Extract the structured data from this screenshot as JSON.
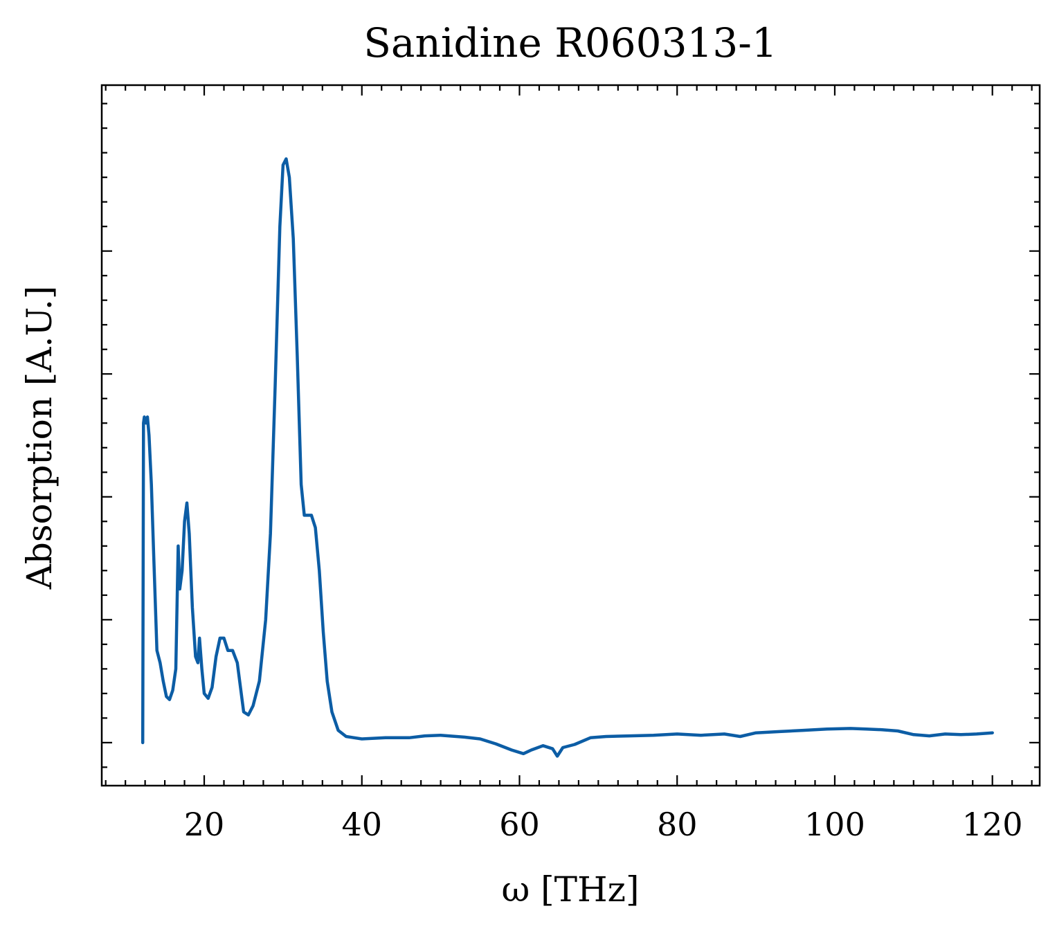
{
  "chart_data": {
    "type": "line",
    "title": "Sanidine R060313-1",
    "xlabel": "ω [THz]",
    "ylabel": "Absorption [A.U.]",
    "xlim": [
      7,
      126
    ],
    "ylim": [
      -0.07,
      1.07
    ],
    "x_major_ticks": [
      20,
      40,
      60,
      80,
      100,
      120
    ],
    "x_minor_step": 2.5,
    "y_major_ticks": [
      0.0,
      0.2,
      0.4,
      0.6,
      0.8
    ],
    "y_minor_step": 0.04,
    "y_tick_labels_visible": false,
    "ticks_direction": "in",
    "ticks_on_all_sides": true,
    "grid": false,
    "legend": "none",
    "colors": {
      "series": "#0C5DA5",
      "axes": "#000000"
    },
    "series": [
      {
        "color": "#0C5DA5",
        "points": [
          [
            12.2,
            0.0
          ],
          [
            12.3,
            0.52
          ],
          [
            12.4,
            0.53
          ],
          [
            12.6,
            0.52
          ],
          [
            12.8,
            0.53
          ],
          [
            13.0,
            0.5
          ],
          [
            13.3,
            0.42
          ],
          [
            13.6,
            0.3
          ],
          [
            14.0,
            0.15
          ],
          [
            14.4,
            0.13
          ],
          [
            14.8,
            0.1
          ],
          [
            15.2,
            0.075
          ],
          [
            15.6,
            0.07
          ],
          [
            16.0,
            0.085
          ],
          [
            16.4,
            0.12
          ],
          [
            16.7,
            0.32
          ],
          [
            16.9,
            0.25
          ],
          [
            17.2,
            0.28
          ],
          [
            17.5,
            0.36
          ],
          [
            17.8,
            0.39
          ],
          [
            18.1,
            0.34
          ],
          [
            18.5,
            0.22
          ],
          [
            18.9,
            0.14
          ],
          [
            19.2,
            0.13
          ],
          [
            19.4,
            0.17
          ],
          [
            19.7,
            0.12
          ],
          [
            20.0,
            0.08
          ],
          [
            20.5,
            0.072
          ],
          [
            21.0,
            0.09
          ],
          [
            21.5,
            0.14
          ],
          [
            22.0,
            0.17
          ],
          [
            22.5,
            0.17
          ],
          [
            23.0,
            0.15
          ],
          [
            23.6,
            0.15
          ],
          [
            24.2,
            0.13
          ],
          [
            24.6,
            0.09
          ],
          [
            25.0,
            0.05
          ],
          [
            25.6,
            0.045
          ],
          [
            26.2,
            0.06
          ],
          [
            27.0,
            0.1
          ],
          [
            27.8,
            0.2
          ],
          [
            28.4,
            0.34
          ],
          [
            29.0,
            0.58
          ],
          [
            29.6,
            0.84
          ],
          [
            30.0,
            0.94
          ],
          [
            30.4,
            0.95
          ],
          [
            30.8,
            0.92
          ],
          [
            31.3,
            0.82
          ],
          [
            31.8,
            0.63
          ],
          [
            32.3,
            0.42
          ],
          [
            32.7,
            0.37
          ],
          [
            33.2,
            0.37
          ],
          [
            33.6,
            0.37
          ],
          [
            34.1,
            0.35
          ],
          [
            34.6,
            0.28
          ],
          [
            35.1,
            0.18
          ],
          [
            35.6,
            0.1
          ],
          [
            36.2,
            0.05
          ],
          [
            37.0,
            0.02
          ],
          [
            38.0,
            0.01
          ],
          [
            40.0,
            0.006
          ],
          [
            43.0,
            0.008
          ],
          [
            46.0,
            0.008
          ],
          [
            48.0,
            0.011
          ],
          [
            50.0,
            0.012
          ],
          [
            53.0,
            0.009
          ],
          [
            55.0,
            0.006
          ],
          [
            57.0,
            -0.002
          ],
          [
            59.0,
            -0.012
          ],
          [
            60.5,
            -0.018
          ],
          [
            61.5,
            -0.012
          ],
          [
            63.0,
            -0.005
          ],
          [
            64.2,
            -0.01
          ],
          [
            64.8,
            -0.022
          ],
          [
            65.5,
            -0.008
          ],
          [
            67.0,
            -0.003
          ],
          [
            69.0,
            0.008
          ],
          [
            71.0,
            0.01
          ],
          [
            74.0,
            0.011
          ],
          [
            77.0,
            0.012
          ],
          [
            80.0,
            0.014
          ],
          [
            83.0,
            0.012
          ],
          [
            86.0,
            0.014
          ],
          [
            88.0,
            0.01
          ],
          [
            90.0,
            0.016
          ],
          [
            93.0,
            0.018
          ],
          [
            96.0,
            0.02
          ],
          [
            99.0,
            0.022
          ],
          [
            102.0,
            0.023
          ],
          [
            104.0,
            0.022
          ],
          [
            106.0,
            0.021
          ],
          [
            108.0,
            0.019
          ],
          [
            110.0,
            0.013
          ],
          [
            112.0,
            0.011
          ],
          [
            114.0,
            0.014
          ],
          [
            116.0,
            0.013
          ],
          [
            118.0,
            0.014
          ],
          [
            120.0,
            0.016
          ]
        ]
      }
    ]
  }
}
